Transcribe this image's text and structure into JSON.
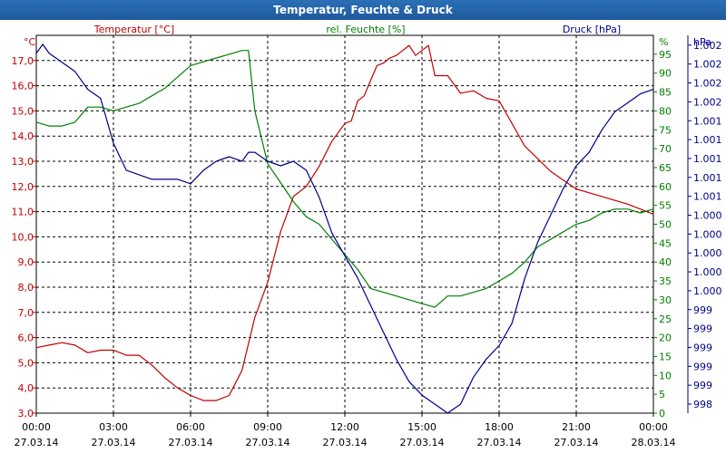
{
  "chart_data": {
    "type": "line",
    "title": "Temperatur, Feuchte & Druck",
    "x_ticks": [
      {
        "time": "00:00",
        "date": "27.03.14"
      },
      {
        "time": "03:00",
        "date": "27.03.14"
      },
      {
        "time": "06:00",
        "date": "27.03.14"
      },
      {
        "time": "09:00",
        "date": "27.03.14"
      },
      {
        "time": "12:00",
        "date": "27.03.14"
      },
      {
        "time": "15:00",
        "date": "27.03.14"
      },
      {
        "time": "18:00",
        "date": "27.03.14"
      },
      {
        "time": "21:00",
        "date": "27.03.14"
      },
      {
        "time": "00:00",
        "date": "28.03.14"
      }
    ],
    "x_range_hours": [
      0,
      24
    ],
    "axes": {
      "temperature": {
        "unit_label": "°C",
        "ylim": [
          3.0,
          18.0
        ],
        "tick_labels": [
          "3,0",
          "4,0",
          "5,0",
          "6,0",
          "7,0",
          "8,0",
          "9,0",
          "10,0",
          "11,0",
          "12,0",
          "13,0",
          "14,0",
          "15,0",
          "16,0",
          "17,0"
        ],
        "color": "#c00000"
      },
      "humidity": {
        "unit_label": "%",
        "ylim": [
          0,
          100
        ],
        "tick_labels": [
          "0",
          "5",
          "10",
          "15",
          "20",
          "25",
          "30",
          "35",
          "40",
          "45",
          "50",
          "55",
          "60",
          "65",
          "70",
          "75",
          "80",
          "85",
          "90",
          "95"
        ],
        "color": "#008000"
      },
      "pressure": {
        "unit_label": "hPa",
        "ylim": [
          998.0,
          1002.2
        ],
        "tick_labels": [
          "998",
          "999",
          "999",
          "999",
          "999",
          "999",
          "1.000",
          "1.000",
          "1.000",
          "1.000",
          "1.000",
          "1.001",
          "1.001",
          "1.001",
          "1.001",
          "1.001",
          "1.002",
          "1.002",
          "1.002",
          "1.002"
        ],
        "color": "#00008b"
      }
    },
    "series": [
      {
        "name": "Temperatur [°C]",
        "axis": "temperature",
        "color": "#c00000",
        "x": [
          0,
          0.5,
          1,
          1.5,
          2,
          2.5,
          3,
          3.5,
          4,
          4.5,
          5,
          5.5,
          6,
          6.5,
          7,
          7.5,
          8,
          8.5,
          9,
          9.5,
          10,
          10.5,
          11,
          11.5,
          12,
          12.25,
          12.5,
          12.75,
          13,
          13.25,
          13.5,
          13.75,
          14,
          14.25,
          14.5,
          14.75,
          15,
          15.25,
          15.5,
          16,
          16.5,
          17,
          17.5,
          18,
          18.5,
          19,
          20,
          21,
          22,
          23,
          24
        ],
        "values": [
          5.6,
          5.7,
          5.8,
          5.7,
          5.4,
          5.5,
          5.5,
          5.3,
          5.3,
          4.9,
          4.4,
          4.0,
          3.7,
          3.5,
          3.5,
          3.7,
          4.7,
          6.8,
          8.2,
          10.2,
          11.6,
          12.0,
          12.8,
          13.8,
          14.5,
          14.6,
          15.4,
          15.6,
          16.2,
          16.8,
          16.9,
          17.1,
          17.2,
          17.4,
          17.6,
          17.2,
          17.4,
          17.6,
          16.4,
          16.4,
          15.7,
          15.8,
          15.5,
          15.4,
          14.5,
          13.6,
          12.6,
          11.9,
          11.6,
          11.3,
          10.9
        ]
      },
      {
        "name": "rel. Feuchte [%]",
        "axis": "humidity",
        "color": "#008000",
        "x": [
          0,
          0.5,
          1,
          1.5,
          2,
          2.5,
          3,
          3.5,
          4,
          4.5,
          5,
          5.5,
          6,
          6.5,
          7,
          7.5,
          8,
          8.25,
          8.5,
          9,
          9.5,
          10,
          10.5,
          11,
          11.5,
          12,
          12.5,
          13,
          13.5,
          14,
          14.5,
          15,
          15.5,
          16,
          16.5,
          17,
          17.5,
          18,
          18.5,
          19,
          19.5,
          20,
          20.5,
          21,
          21.5,
          22,
          22.5,
          23,
          23.5,
          24
        ],
        "values": [
          77,
          76,
          76,
          77,
          81,
          81,
          80,
          81,
          82,
          84,
          86,
          89,
          92,
          93,
          94,
          95,
          96,
          96,
          80,
          66,
          61,
          56,
          52,
          50,
          46,
          42,
          38,
          33,
          32,
          31,
          30,
          29,
          28,
          31,
          31,
          32,
          33,
          35,
          37,
          40,
          44,
          46,
          48,
          50,
          51,
          53,
          54,
          54,
          53,
          54
        ]
      },
      {
        "name": "Druck [hPa]",
        "axis": "pressure",
        "color": "#00008b",
        "x": [
          0,
          0.25,
          0.5,
          1,
          1.5,
          2,
          2.5,
          3,
          3.5,
          4,
          4.5,
          5,
          5.5,
          6,
          6.5,
          7,
          7.5,
          8,
          8.25,
          8.5,
          9,
          9.5,
          10,
          10.5,
          11,
          11.5,
          12,
          12.5,
          13,
          13.5,
          14,
          14.5,
          15,
          15.5,
          16,
          16.5,
          17,
          17.5,
          18,
          18.5,
          19,
          19.5,
          20,
          20.5,
          21,
          21.5,
          22,
          22.5,
          23,
          23.5,
          24
        ],
        "values": [
          1002.0,
          1002.1,
          1002.0,
          1001.9,
          1001.8,
          1001.6,
          1001.5,
          1001.0,
          1000.7,
          1000.65,
          1000.6,
          1000.6,
          1000.6,
          1000.55,
          1000.7,
          1000.8,
          1000.85,
          1000.8,
          1000.9,
          1000.9,
          1000.8,
          1000.75,
          1000.8,
          1000.7,
          1000.4,
          1000.0,
          999.75,
          999.5,
          999.2,
          998.9,
          998.6,
          998.35,
          998.2,
          998.1,
          998.0,
          998.1,
          998.4,
          998.6,
          998.75,
          999.0,
          999.5,
          999.9,
          1000.2,
          1000.5,
          1000.75,
          1000.9,
          1001.15,
          1001.35,
          1001.45,
          1001.55,
          1001.6
        ]
      }
    ]
  }
}
